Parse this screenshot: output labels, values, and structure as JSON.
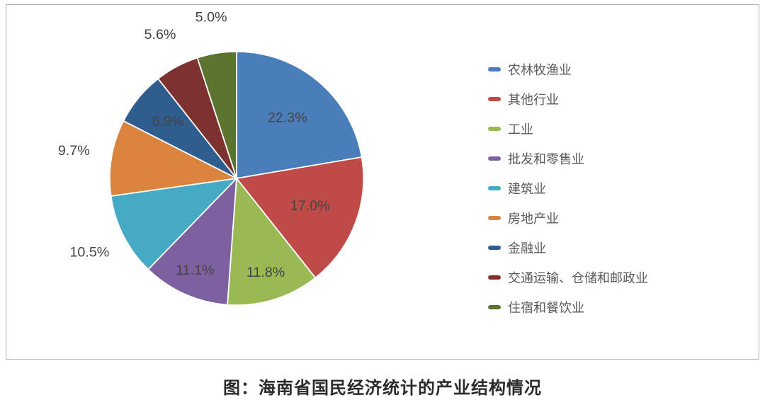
{
  "chart": {
    "type": "pie",
    "background_color": "#ffffff",
    "border_color": "#b0b0b0",
    "pie_radius": 200,
    "start_angle_deg": 0,
    "direction": "clockwise",
    "label_fontsize": 22,
    "label_color": "#444444",
    "legend_fontsize": 18,
    "legend_text_color": "#5a5a5a",
    "legend_marker_style": "short-bar",
    "slices": [
      {
        "label": "农林牧渔业",
        "value": 22.3,
        "display": "22.3%",
        "color": "#4a7ebb",
        "label_r": 0.62
      },
      {
        "label": "其他行业",
        "value": 17.0,
        "display": "17.0%",
        "color": "#be4b48",
        "label_r": 0.62
      },
      {
        "label": "工业",
        "value": 11.8,
        "display": "11.8%",
        "color": "#98b954",
        "label_r": 0.78
      },
      {
        "label": "批发和零售业",
        "value": 11.1,
        "display": "11.1%",
        "color": "#7d60a0",
        "label_r": 0.8
      },
      {
        "label": "建筑业",
        "value": 10.5,
        "display": "10.5%",
        "color": "#46aac5",
        "label_r": 1.3
      },
      {
        "label": "房地产业",
        "value": 9.7,
        "display": "9.7%",
        "color": "#db843d",
        "label_r": 1.3
      },
      {
        "label": "金融业",
        "value": 6.9,
        "display": "6.9%",
        "color": "#2f5d8d",
        "label_r": 0.7
      },
      {
        "label": "交通运输、仓储和邮政业",
        "value": 5.6,
        "display": "5.6%",
        "color": "#7e3230",
        "label_r": 1.28
      },
      {
        "label": "住宿和餐饮业",
        "value": 5.0,
        "display": "5.0%",
        "color": "#5b732e",
        "label_r": 1.28
      }
    ]
  },
  "caption": "图：海南省国民经济统计的产业结构情况"
}
